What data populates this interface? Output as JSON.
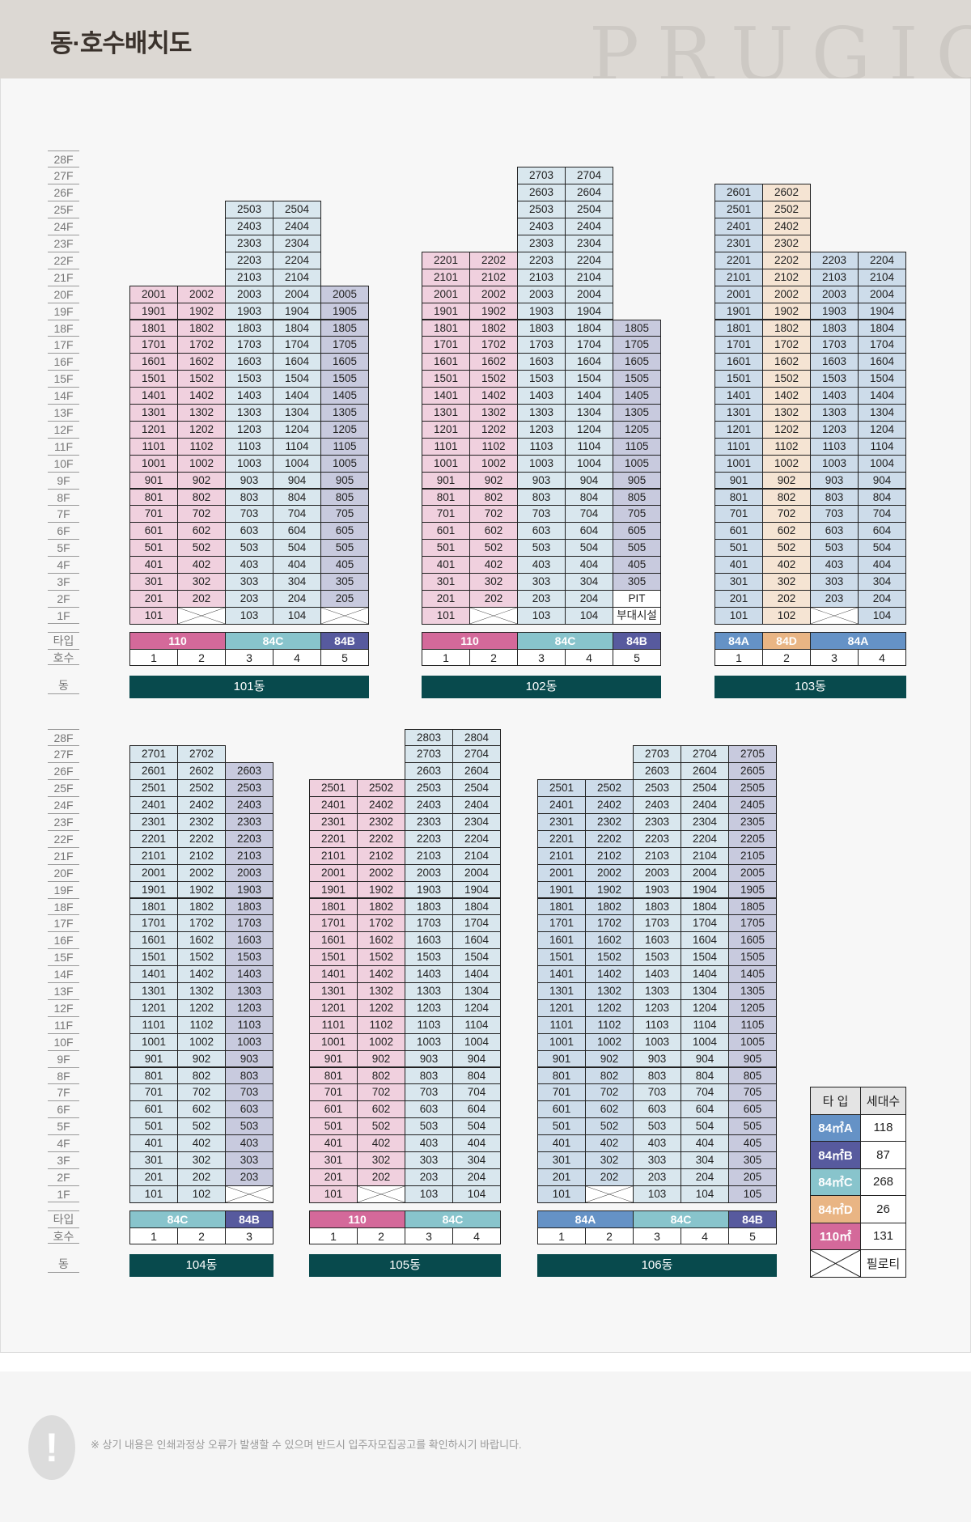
{
  "header": {
    "title": "동·호수배치도",
    "watermark": "PRUGIO"
  },
  "row_labels": {
    "type": "타입",
    "line": "호수",
    "building": "동"
  },
  "floor_labels": [
    "28F",
    "27F",
    "26F",
    "25F",
    "24F",
    "23F",
    "22F",
    "21F",
    "20F",
    "19F",
    "18F",
    "17F",
    "16F",
    "15F",
    "14F",
    "13F",
    "12F",
    "11F",
    "10F",
    "9F",
    "8F",
    "7F",
    "6F",
    "5F",
    "4F",
    "3F",
    "2F",
    "1F"
  ],
  "types": {
    "84A": {
      "header": "#6592c6",
      "cell": "#cddcea"
    },
    "84B": {
      "header": "#575a9e",
      "cell": "#c8cade"
    },
    "84C": {
      "header": "#88c4cc",
      "cell": "#d9e7ee"
    },
    "84D": {
      "header": "#e9b584",
      "cell": "#f5e4d3"
    },
    "110": {
      "header": "#d4699a",
      "cell": "#f0d0de"
    }
  },
  "buildings": [
    {
      "name": "101동",
      "type_segments": [
        {
          "label": "110",
          "type": "110",
          "span": 2
        },
        {
          "label": "84C",
          "type": "84C",
          "span": 2
        },
        {
          "label": "84B",
          "type": "84B",
          "span": 1
        }
      ],
      "columns": [
        {
          "line": "1",
          "type": "110",
          "units": [
            "2001",
            "1901",
            "1801",
            "1701",
            "1601",
            "1501",
            "1401",
            "1301",
            "1201",
            "1101",
            "1001",
            "901",
            "801",
            "701",
            "601",
            "501",
            "401",
            "301",
            "201",
            "101"
          ]
        },
        {
          "line": "2",
          "type": "110",
          "units": [
            "2002",
            "1902",
            "1802",
            "1702",
            "1602",
            "1502",
            "1402",
            "1302",
            "1202",
            "1102",
            "1002",
            "902",
            "802",
            "702",
            "602",
            "502",
            "402",
            "302",
            "202",
            "X"
          ]
        },
        {
          "line": "3",
          "type": "84C",
          "units": [
            "2503",
            "2403",
            "2303",
            "2203",
            "2103",
            "2003",
            "1903",
            "1803",
            "1703",
            "1603",
            "1503",
            "1403",
            "1303",
            "1203",
            "1103",
            "1003",
            "903",
            "803",
            "703",
            "603",
            "503",
            "403",
            "303",
            "203",
            "103"
          ]
        },
        {
          "line": "4",
          "type": "84C",
          "units": [
            "2504",
            "2404",
            "2304",
            "2204",
            "2104",
            "2004",
            "1904",
            "1804",
            "1704",
            "1604",
            "1504",
            "1404",
            "1304",
            "1204",
            "1104",
            "1004",
            "904",
            "804",
            "704",
            "604",
            "504",
            "404",
            "304",
            "204",
            "104"
          ]
        },
        {
          "line": "5",
          "type": "84B",
          "units": [
            "2005",
            "1905",
            "1805",
            "1705",
            "1605",
            "1505",
            "1405",
            "1305",
            "1205",
            "1105",
            "1005",
            "905",
            "805",
            "705",
            "605",
            "505",
            "405",
            "305",
            "205",
            "X"
          ]
        }
      ]
    },
    {
      "name": "102동",
      "type_segments": [
        {
          "label": "110",
          "type": "110",
          "span": 2
        },
        {
          "label": "84C",
          "type": "84C",
          "span": 2
        },
        {
          "label": "84B",
          "type": "84B",
          "span": 1
        }
      ],
      "columns": [
        {
          "line": "1",
          "type": "110",
          "units": [
            "2201",
            "2101",
            "2001",
            "1901",
            "1801",
            "1701",
            "1601",
            "1501",
            "1401",
            "1301",
            "1201",
            "1101",
            "1001",
            "901",
            "801",
            "701",
            "601",
            "501",
            "401",
            "301",
            "201",
            "101"
          ]
        },
        {
          "line": "2",
          "type": "110",
          "units": [
            "2202",
            "2102",
            "2002",
            "1902",
            "1802",
            "1702",
            "1602",
            "1502",
            "1402",
            "1302",
            "1202",
            "1102",
            "1002",
            "902",
            "802",
            "702",
            "602",
            "502",
            "402",
            "302",
            "202",
            "X"
          ]
        },
        {
          "line": "3",
          "type": "84C",
          "units": [
            "2703",
            "2603",
            "2503",
            "2403",
            "2303",
            "2203",
            "2103",
            "2003",
            "1903",
            "1803",
            "1703",
            "1603",
            "1503",
            "1403",
            "1303",
            "1203",
            "1103",
            "1003",
            "903",
            "803",
            "703",
            "603",
            "503",
            "403",
            "303",
            "203",
            "103"
          ]
        },
        {
          "line": "4",
          "type": "84C",
          "units": [
            "2704",
            "2604",
            "2504",
            "2404",
            "2304",
            "2204",
            "2104",
            "2004",
            "1904",
            "1804",
            "1704",
            "1604",
            "1504",
            "1404",
            "1304",
            "1204",
            "1104",
            "1004",
            "904",
            "804",
            "704",
            "604",
            "504",
            "404",
            "304",
            "204",
            "104"
          ]
        },
        {
          "line": "5",
          "type": "84B",
          "units": [
            "1805",
            "1705",
            "1605",
            "1505",
            "1405",
            "1305",
            "1205",
            "1105",
            "1005",
            "905",
            "805",
            "705",
            "605",
            "505",
            "405",
            "305",
            "PIT",
            "부대시설"
          ]
        }
      ]
    },
    {
      "name": "103동",
      "type_segments": [
        {
          "label": "84A",
          "type": "84A",
          "span": 1
        },
        {
          "label": "84D",
          "type": "84D",
          "span": 1
        },
        {
          "label": "84A",
          "type": "84A",
          "span": 2
        }
      ],
      "columns": [
        {
          "line": "1",
          "type": "84A",
          "units": [
            "2601",
            "2501",
            "2401",
            "2301",
            "2201",
            "2101",
            "2001",
            "1901",
            "1801",
            "1701",
            "1601",
            "1501",
            "1401",
            "1301",
            "1201",
            "1101",
            "1001",
            "901",
            "801",
            "701",
            "601",
            "501",
            "401",
            "301",
            "201",
            "101"
          ]
        },
        {
          "line": "2",
          "type": "84D",
          "units": [
            "2602",
            "2502",
            "2402",
            "2302",
            "2202",
            "2102",
            "2002",
            "1902",
            "1802",
            "1702",
            "1602",
            "1502",
            "1402",
            "1302",
            "1202",
            "1102",
            "1002",
            "902",
            "802",
            "702",
            "602",
            "502",
            "402",
            "302",
            "202",
            "102"
          ]
        },
        {
          "line": "3",
          "type": "84A",
          "units": [
            "2203",
            "2103",
            "2003",
            "1903",
            "1803",
            "1703",
            "1603",
            "1503",
            "1403",
            "1303",
            "1203",
            "1103",
            "1003",
            "903",
            "803",
            "703",
            "603",
            "503",
            "403",
            "303",
            "203",
            "X"
          ]
        },
        {
          "line": "4",
          "type": "84A",
          "units": [
            "2204",
            "2104",
            "2004",
            "1904",
            "1804",
            "1704",
            "1604",
            "1504",
            "1404",
            "1304",
            "1204",
            "1104",
            "1004",
            "904",
            "804",
            "704",
            "604",
            "504",
            "404",
            "304",
            "204",
            "104"
          ]
        }
      ]
    },
    {
      "name": "104동",
      "type_segments": [
        {
          "label": "84C",
          "type": "84C",
          "span": 2
        },
        {
          "label": "84B",
          "type": "84B",
          "span": 1
        }
      ],
      "columns": [
        {
          "line": "1",
          "type": "84C",
          "units": [
            "2701",
            "2601",
            "2501",
            "2401",
            "2301",
            "2201",
            "2101",
            "2001",
            "1901",
            "1801",
            "1701",
            "1601",
            "1501",
            "1401",
            "1301",
            "1201",
            "1101",
            "1001",
            "901",
            "801",
            "701",
            "601",
            "501",
            "401",
            "301",
            "201",
            "101"
          ]
        },
        {
          "line": "2",
          "type": "84C",
          "units": [
            "2702",
            "2602",
            "2502",
            "2402",
            "2302",
            "2202",
            "2102",
            "2002",
            "1902",
            "1802",
            "1702",
            "1602",
            "1502",
            "1402",
            "1302",
            "1202",
            "1102",
            "1002",
            "902",
            "802",
            "702",
            "602",
            "502",
            "402",
            "302",
            "202",
            "102"
          ]
        },
        {
          "line": "3",
          "type": "84B",
          "units": [
            "2603",
            "2503",
            "2403",
            "2303",
            "2203",
            "2103",
            "2003",
            "1903",
            "1803",
            "1703",
            "1603",
            "1503",
            "1403",
            "1303",
            "1203",
            "1103",
            "1003",
            "903",
            "803",
            "703",
            "603",
            "503",
            "403",
            "303",
            "203",
            "X"
          ]
        }
      ]
    },
    {
      "name": "105동",
      "type_segments": [
        {
          "label": "110",
          "type": "110",
          "span": 2
        },
        {
          "label": "84C",
          "type": "84C",
          "span": 2
        }
      ],
      "columns": [
        {
          "line": "1",
          "type": "110",
          "units": [
            "2501",
            "2401",
            "2301",
            "2201",
            "2101",
            "2001",
            "1901",
            "1801",
            "1701",
            "1601",
            "1501",
            "1401",
            "1301",
            "1201",
            "1101",
            "1001",
            "901",
            "801",
            "701",
            "601",
            "501",
            "401",
            "301",
            "201",
            "101"
          ]
        },
        {
          "line": "2",
          "type": "110",
          "units": [
            "2502",
            "2402",
            "2302",
            "2202",
            "2102",
            "2002",
            "1902",
            "1802",
            "1702",
            "1602",
            "1502",
            "1402",
            "1302",
            "1202",
            "1102",
            "1002",
            "902",
            "802",
            "702",
            "602",
            "502",
            "402",
            "302",
            "202",
            "X"
          ]
        },
        {
          "line": "3",
          "type": "84C",
          "units": [
            "2803",
            "2703",
            "2603",
            "2503",
            "2403",
            "2303",
            "2203",
            "2103",
            "2003",
            "1903",
            "1803",
            "1703",
            "1603",
            "1503",
            "1403",
            "1303",
            "1203",
            "1103",
            "1003",
            "903",
            "803",
            "703",
            "603",
            "503",
            "403",
            "303",
            "203",
            "103"
          ]
        },
        {
          "line": "4",
          "type": "84C",
          "units": [
            "2804",
            "2704",
            "2604",
            "2504",
            "2404",
            "2304",
            "2204",
            "2104",
            "2004",
            "1904",
            "1804",
            "1704",
            "1604",
            "1504",
            "1404",
            "1304",
            "1204",
            "1104",
            "1004",
            "904",
            "804",
            "704",
            "604",
            "504",
            "404",
            "304",
            "204",
            "104"
          ]
        }
      ]
    },
    {
      "name": "106동",
      "type_segments": [
        {
          "label": "84A",
          "type": "84A",
          "span": 2
        },
        {
          "label": "84C",
          "type": "84C",
          "span": 2
        },
        {
          "label": "84B",
          "type": "84B",
          "span": 1
        }
      ],
      "columns": [
        {
          "line": "1",
          "type": "84A",
          "units": [
            "2501",
            "2401",
            "2301",
            "2201",
            "2101",
            "2001",
            "1901",
            "1801",
            "1701",
            "1601",
            "1501",
            "1401",
            "1301",
            "1201",
            "1101",
            "1001",
            "901",
            "801",
            "701",
            "601",
            "501",
            "401",
            "301",
            "201",
            "101"
          ]
        },
        {
          "line": "2",
          "type": "84A",
          "units": [
            "2502",
            "2402",
            "2302",
            "2202",
            "2102",
            "2002",
            "1902",
            "1802",
            "1702",
            "1602",
            "1502",
            "1402",
            "1302",
            "1202",
            "1102",
            "1002",
            "902",
            "802",
            "702",
            "602",
            "502",
            "402",
            "302",
            "202",
            "X"
          ]
        },
        {
          "line": "3",
          "type": "84C",
          "units": [
            "2703",
            "2603",
            "2503",
            "2403",
            "2303",
            "2203",
            "2103",
            "2003",
            "1903",
            "1803",
            "1703",
            "1603",
            "1503",
            "1403",
            "1303",
            "1203",
            "1103",
            "1003",
            "903",
            "803",
            "703",
            "603",
            "503",
            "403",
            "303",
            "203",
            "103"
          ]
        },
        {
          "line": "4",
          "type": "84C",
          "units": [
            "2704",
            "2604",
            "2504",
            "2404",
            "2304",
            "2204",
            "2104",
            "2004",
            "1904",
            "1804",
            "1704",
            "1604",
            "1504",
            "1404",
            "1304",
            "1204",
            "1104",
            "1004",
            "904",
            "804",
            "704",
            "604",
            "504",
            "404",
            "304",
            "204",
            "104"
          ]
        },
        {
          "line": "5",
          "type": "84B",
          "units": [
            "2705",
            "2605",
            "2505",
            "2405",
            "2305",
            "2205",
            "2105",
            "2005",
            "1905",
            "1805",
            "1705",
            "1605",
            "1505",
            "1405",
            "1305",
            "1205",
            "1105",
            "1005",
            "905",
            "805",
            "705",
            "605",
            "505",
            "405",
            "305",
            "205",
            "105"
          ]
        }
      ]
    }
  ],
  "legend": {
    "header": [
      "타 입",
      "세대수"
    ],
    "rows": [
      {
        "label": "84㎡A",
        "type": "84A",
        "count": "118"
      },
      {
        "label": "84㎡B",
        "type": "84B",
        "count": "87"
      },
      {
        "label": "84㎡C",
        "type": "84C",
        "count": "268"
      },
      {
        "label": "84㎡D",
        "type": "84D",
        "count": "26"
      },
      {
        "label": "110㎡",
        "type": "110",
        "count": "131"
      }
    ],
    "piloti_label": "필로티"
  },
  "footer": {
    "note": "※ 상기 내용은 인쇄과정상 오류가 발생할 수 있으며 반드시 입주자모집공고를 확인하시기 바랍니다."
  }
}
